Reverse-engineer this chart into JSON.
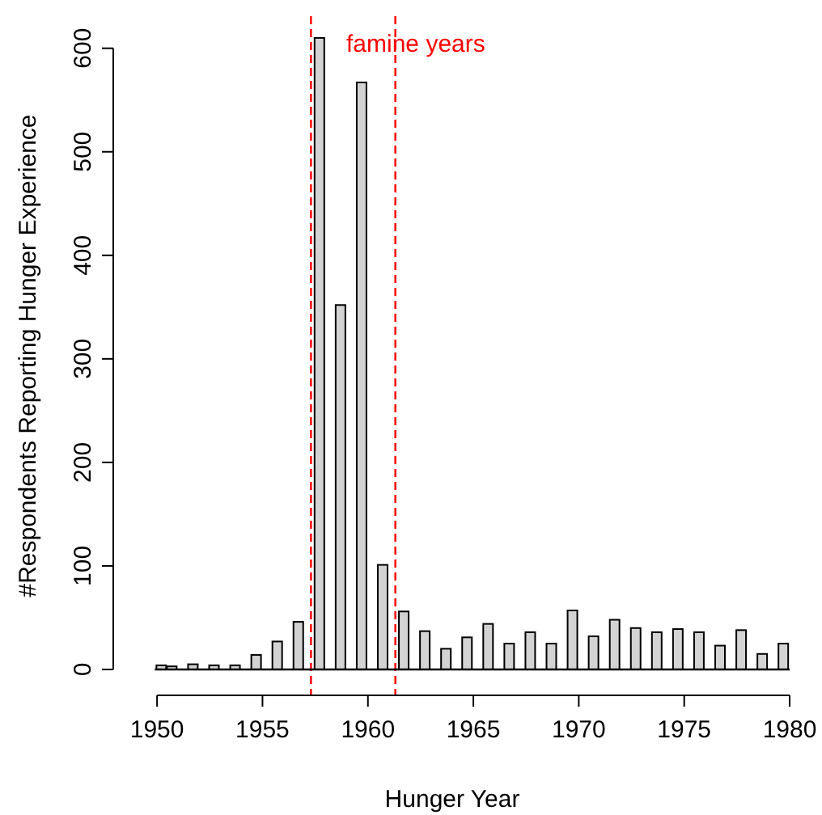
{
  "chart_data": {
    "type": "bar",
    "xlabel": "Hunger Year",
    "ylabel": "#Respondents Reporting Hunger Experience",
    "x": [
      1950.2,
      1950.7,
      1951.7,
      1952.7,
      1953.7,
      1954.7,
      1955.7,
      1956.7,
      1957.7,
      1958.7,
      1959.7,
      1960.7,
      1961.7,
      1962.7,
      1963.7,
      1964.7,
      1965.7,
      1966.7,
      1967.7,
      1968.7,
      1969.7,
      1970.7,
      1971.7,
      1972.7,
      1973.7,
      1974.7,
      1975.7,
      1976.7,
      1977.7,
      1978.7,
      1979.7
    ],
    "values": [
      4,
      3,
      5,
      4,
      4,
      14,
      27,
      46,
      610,
      352,
      567,
      101,
      56,
      37,
      20,
      31,
      44,
      25,
      36,
      25,
      57,
      32,
      48,
      40,
      36,
      39,
      36,
      23,
      38,
      15,
      25
    ],
    "color": "#d3d3d3",
    "xlim": [
      1948,
      1980
    ],
    "xticks": [
      1950,
      1955,
      1960,
      1965,
      1970,
      1975,
      1980
    ],
    "ylim": [
      -25,
      631
    ],
    "yticks": [
      0,
      100,
      200,
      300,
      400,
      500,
      600
    ],
    "ref_lines": [
      {
        "axis": "x",
        "value": 1957.3,
        "color": "#ff0000",
        "line_style": "dashed"
      },
      {
        "axis": "x",
        "value": 1961.3,
        "color": "#ff0000",
        "line_style": "dashed"
      },
      {
        "axis": "y",
        "value": 0,
        "color": "#000000",
        "line_style": "solid"
      }
    ],
    "annotations": [
      "famine years"
    ],
    "grid": false
  }
}
